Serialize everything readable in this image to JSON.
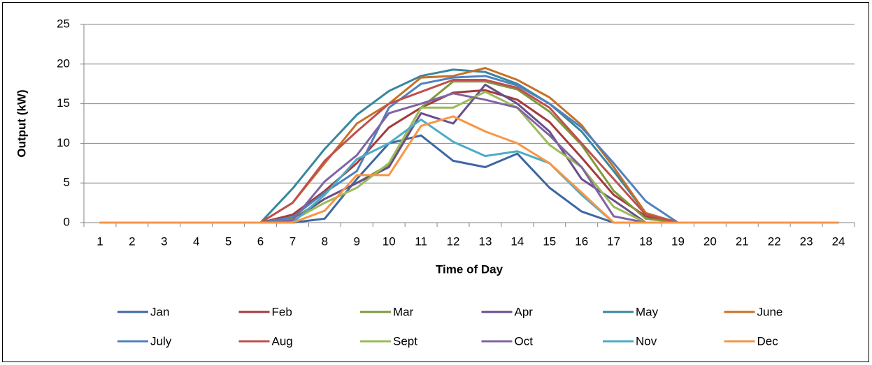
{
  "chart_data": {
    "type": "line",
    "x_label": "Time of Day",
    "y_label": "Output (kW)",
    "categories": [
      "1",
      "2",
      "3",
      "4",
      "5",
      "6",
      "7",
      "8",
      "9",
      "10",
      "11",
      "12",
      "13",
      "14",
      "15",
      "16",
      "17",
      "18",
      "19",
      "20",
      "21",
      "22",
      "23",
      "24"
    ],
    "ylim": [
      0,
      25
    ],
    "yticks": [
      0,
      5,
      10,
      15,
      20,
      25
    ],
    "grid": true,
    "legend": "bottom",
    "series": [
      {
        "name": "Jan",
        "color": "#3c67a3",
        "values": [
          0,
          0,
          0,
          0,
          0,
          0,
          0,
          0.5,
          5.5,
          10,
          11,
          7.8,
          7,
          8.7,
          4.4,
          1.4,
          0,
          0,
          0,
          0,
          0,
          0,
          0,
          0
        ]
      },
      {
        "name": "Feb",
        "color": "#a33b3a",
        "values": [
          0,
          0,
          0,
          0,
          0,
          0,
          1,
          4,
          7.5,
          12,
          14.5,
          16.4,
          16.7,
          15.5,
          12.7,
          8.2,
          3.5,
          0.8,
          0,
          0,
          0,
          0,
          0,
          0
        ]
      },
      {
        "name": "Mar",
        "color": "#7e9a3c",
        "values": [
          0,
          0,
          0,
          0,
          0,
          0,
          0.5,
          3,
          5,
          7.3,
          14.5,
          17.8,
          17.8,
          16.8,
          14,
          9.8,
          4,
          0.5,
          0,
          0,
          0,
          0,
          0,
          0
        ]
      },
      {
        "name": "Apr",
        "color": "#684f8c",
        "values": [
          0,
          0,
          0,
          0,
          0,
          0,
          0.3,
          3,
          5,
          7,
          13.8,
          12.5,
          17.4,
          15,
          11.5,
          5.5,
          2.8,
          0,
          0,
          0,
          0,
          0,
          0,
          0
        ]
      },
      {
        "name": "May",
        "color": "#37879e",
        "values": [
          0,
          0,
          0,
          0,
          0,
          0,
          4.3,
          9.3,
          13.6,
          16.6,
          18.5,
          19.3,
          19,
          17.5,
          15,
          11.5,
          6.5,
          1.2,
          0,
          0,
          0,
          0,
          0,
          0
        ]
      },
      {
        "name": "June",
        "color": "#c86f27",
        "values": [
          0,
          0,
          0,
          0,
          0,
          0,
          2.5,
          7.5,
          12.5,
          15,
          18.3,
          18.5,
          19.5,
          18,
          15.8,
          12.3,
          7,
          1.2,
          0,
          0,
          0,
          0,
          0,
          0
        ]
      },
      {
        "name": "July",
        "color": "#4f81bd",
        "values": [
          0,
          0,
          0,
          0,
          0,
          0,
          0.7,
          3.8,
          6.5,
          14.5,
          17.5,
          18.3,
          18.5,
          17.3,
          15,
          12,
          7.5,
          2.7,
          0,
          0,
          0,
          0,
          0,
          0
        ]
      },
      {
        "name": "Aug",
        "color": "#c0504d",
        "values": [
          0,
          0,
          0,
          0,
          0,
          0,
          2.5,
          7.8,
          11.5,
          15,
          16.5,
          18,
          18,
          17,
          14.5,
          10,
          5.5,
          1,
          0,
          0,
          0,
          0,
          0,
          0
        ]
      },
      {
        "name": "Sept",
        "color": "#9bbb59",
        "values": [
          0,
          0,
          0,
          0,
          0,
          0,
          0.3,
          2.5,
          4.4,
          7.5,
          14.5,
          14.5,
          16.5,
          14.5,
          9.8,
          7,
          2,
          0,
          0,
          0,
          0,
          0,
          0,
          0
        ]
      },
      {
        "name": "Oct",
        "color": "#8064a2",
        "values": [
          0,
          0,
          0,
          0,
          0,
          0,
          0.3,
          5.2,
          8.5,
          13.8,
          15,
          16.3,
          15.5,
          14.5,
          11,
          7,
          0.8,
          0,
          0,
          0,
          0,
          0,
          0,
          0
        ]
      },
      {
        "name": "Nov",
        "color": "#4bacc6",
        "values": [
          0,
          0,
          0,
          0,
          0,
          0,
          0,
          3.5,
          8,
          10,
          13,
          10.2,
          8.4,
          9,
          7.5,
          3.5,
          0,
          0,
          0,
          0,
          0,
          0,
          0,
          0
        ]
      },
      {
        "name": "Dec",
        "color": "#f79646",
        "values": [
          0,
          0,
          0,
          0,
          0,
          0,
          0,
          1.5,
          6,
          6,
          12.2,
          13.4,
          11.5,
          10,
          7.5,
          3.8,
          0,
          0,
          0,
          0,
          0,
          0,
          0,
          0
        ]
      }
    ]
  }
}
